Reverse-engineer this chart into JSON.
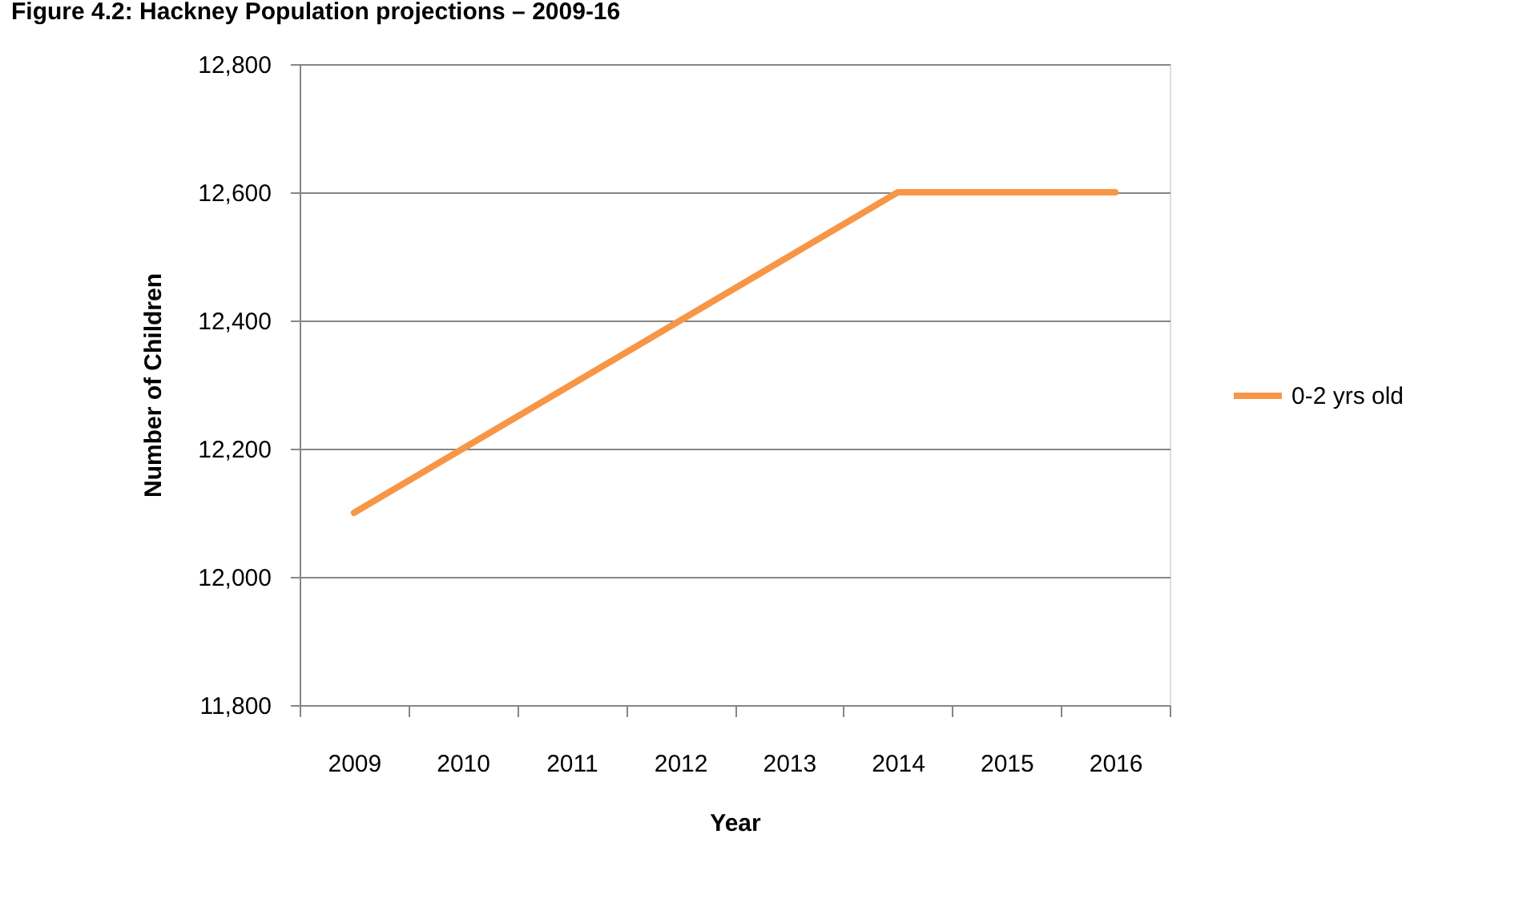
{
  "chart_data": {
    "type": "line",
    "title": "Figure 4.2: Hackney Population projections – 2009-16",
    "xlabel": "Year",
    "ylabel": "Number of Children",
    "categories": [
      "2009",
      "2010",
      "2011",
      "2012",
      "2013",
      "2014",
      "2015",
      "2016"
    ],
    "series": [
      {
        "name": "0-2 yrs old",
        "color": "#f79646",
        "values": [
          12100,
          12200,
          12300,
          12400,
          12500,
          12600,
          12600,
          12600
        ]
      }
    ],
    "ylim": [
      11800,
      12800
    ],
    "yticks": [
      {
        "value": 11800,
        "label": "11,800"
      },
      {
        "value": 12000,
        "label": "12,000"
      },
      {
        "value": 12200,
        "label": "12,200"
      },
      {
        "value": 12400,
        "label": "12,400"
      },
      {
        "value": 12600,
        "label": "12,600"
      },
      {
        "value": 12800,
        "label": "12,800"
      }
    ],
    "grid": "y",
    "legend": "right",
    "line_style": "solid"
  }
}
